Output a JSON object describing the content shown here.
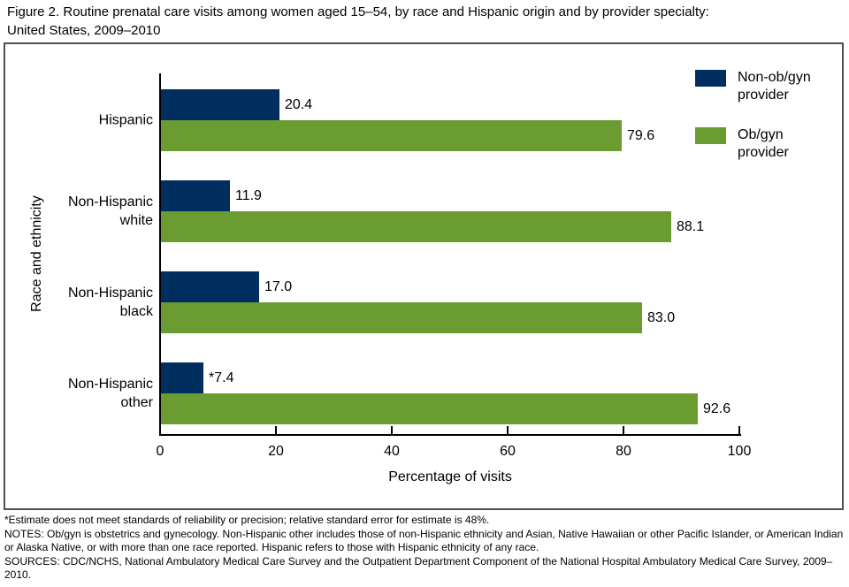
{
  "header": {
    "title_line1": "Figure 2. Routine prenatal care visits among women aged 15–54, by race and Hispanic origin and by provider specialty:",
    "title_line2": "United States, 2009–2010"
  },
  "chart_data": {
    "type": "bar",
    "orientation": "horizontal",
    "title": "Figure 2. Routine prenatal care visits among women aged 15–54, by race and Hispanic origin and by provider specialty: United States, 2009–2010",
    "categories": [
      "Hispanic",
      "Non-Hispanic white",
      "Non-Hispanic black",
      "Non-Hispanic other"
    ],
    "series": [
      {
        "name": "Non-ob/gyn provider",
        "color": "#002f5f",
        "values": [
          20.4,
          11.9,
          17.0,
          7.4
        ],
        "value_labels": [
          "20.4",
          "11.9",
          "17.0",
          "*7.4"
        ]
      },
      {
        "name": "Ob/gyn provider",
        "color": "#6a9c31",
        "values": [
          79.6,
          88.1,
          83.0,
          92.6
        ],
        "value_labels": [
          "79.6",
          "88.1",
          "83.0",
          "92.6"
        ]
      }
    ],
    "xlabel": "Percentage of visits",
    "ylabel": "Race and ethnicity",
    "xlim": [
      0,
      100
    ],
    "xticks": [
      0,
      20,
      40,
      60,
      80,
      100
    ],
    "grid": false,
    "legend_position": "top-right-inside"
  },
  "footnotes": [
    "*Estimate does not meet standards of reliability or precision; relative standard error for estimate is 48%.",
    "NOTES: Ob/gyn is obstetrics and gynecology. Non-Hispanic other includes those of non-Hispanic ethnicity and Asian, Native Hawaiian or other Pacific Islander, or American Indian or Alaska Native, or with more than one race reported. Hispanic refers to those with Hispanic ethnicity of any race.",
    "SOURCES: CDC/NCHS, National Ambulatory Medical Care Survey and the Outpatient Department Component of the National Hospital Ambulatory Medical Care Survey, 2009–2010."
  ]
}
